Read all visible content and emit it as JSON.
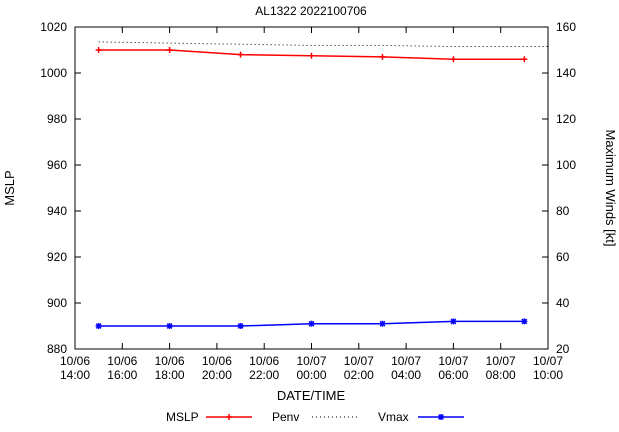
{
  "chart_data": {
    "type": "line",
    "title": "AL1322 2022100706",
    "xlabel": "DATE/TIME",
    "ylabel_left": "MSLP",
    "ylabel_right": "Maximum Winds [kt]",
    "xlim": [
      0,
      20
    ],
    "ylim_left": [
      880,
      1020
    ],
    "ylim_right": [
      20,
      160
    ],
    "grid": false,
    "legend_position": "bottom-center",
    "y_ticks_left": [
      880,
      900,
      920,
      940,
      960,
      980,
      1000,
      1020
    ],
    "y_ticks_right": [
      20,
      40,
      60,
      80,
      100,
      120,
      140,
      160
    ],
    "x_ticks": [
      {
        "hour": 0,
        "date": "10/06",
        "time": "14:00"
      },
      {
        "hour": 2,
        "date": "10/06",
        "time": "16:00"
      },
      {
        "hour": 4,
        "date": "10/06",
        "time": "18:00"
      },
      {
        "hour": 6,
        "date": "10/06",
        "time": "20:00"
      },
      {
        "hour": 8,
        "date": "10/06",
        "time": "22:00"
      },
      {
        "hour": 10,
        "date": "10/07",
        "time": "00:00"
      },
      {
        "hour": 12,
        "date": "10/07",
        "time": "02:00"
      },
      {
        "hour": 14,
        "date": "10/07",
        "time": "04:00"
      },
      {
        "hour": 16,
        "date": "10/07",
        "time": "06:00"
      },
      {
        "hour": 18,
        "date": "10/07",
        "time": "08:00"
      },
      {
        "hour": 20,
        "date": "10/07",
        "time": "10:00"
      }
    ],
    "series": [
      {
        "name": "MSLP",
        "axis": "left",
        "color": "#ff0000",
        "style": "solid",
        "marker": "plus",
        "width": 1.5,
        "x": [
          1,
          4,
          7,
          10,
          13,
          16,
          19
        ],
        "values": [
          1010,
          1010,
          1008,
          1007.5,
          1007,
          1006,
          1006
        ]
      },
      {
        "name": "Penv",
        "axis": "left",
        "color": "#000000",
        "style": "dotted",
        "marker": "none",
        "width": 1,
        "x": [
          1,
          4,
          7,
          10,
          13,
          16,
          19,
          20
        ],
        "values": [
          1013.5,
          1013,
          1012.5,
          1012,
          1012,
          1011.5,
          1011.5,
          1011.5
        ]
      },
      {
        "name": "Vmax",
        "axis": "right",
        "color": "#0000ff",
        "style": "solid",
        "marker": "asterisk",
        "width": 1.5,
        "x": [
          1,
          4,
          7,
          10,
          13,
          16,
          19
        ],
        "values": [
          30,
          30,
          30,
          31,
          31,
          32,
          32
        ]
      }
    ]
  }
}
